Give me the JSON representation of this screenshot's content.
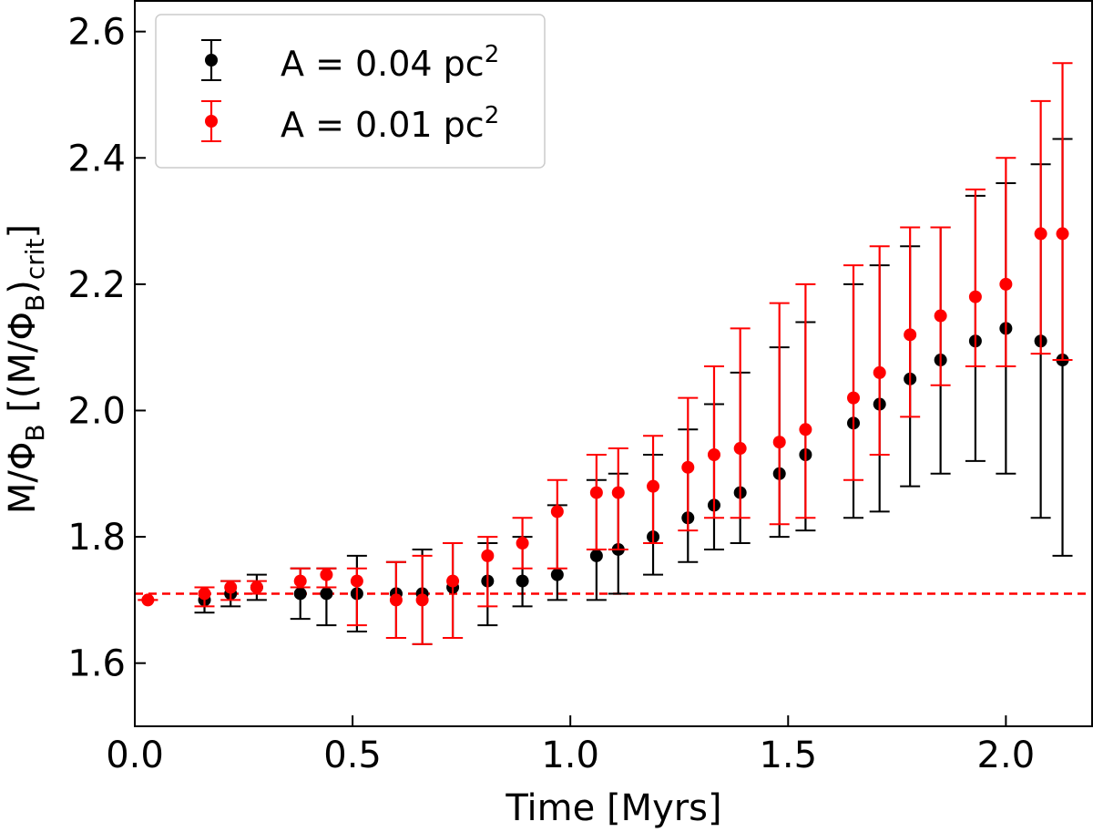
{
  "chart_data": {
    "type": "scatter",
    "xlabel": "Time [Myrs]",
    "ylabel": {
      "main": "M/Φ",
      "sub1": "B",
      "mid": " [(M/Φ",
      "sub2": "B",
      "close": ")",
      "sub3": "crit",
      "end": "]"
    },
    "xlim": [
      0.0,
      2.2
    ],
    "ylim": [
      1.5,
      2.65
    ],
    "xticks": [
      0.0,
      0.5,
      1.0,
      1.5,
      2.0
    ],
    "xtick_labels": [
      "0.0",
      "0.5",
      "1.0",
      "1.5",
      "2.0"
    ],
    "yticks": [
      1.6,
      1.8,
      2.0,
      2.2,
      2.4,
      2.6
    ],
    "ytick_labels": [
      "1.6",
      "1.8",
      "2.0",
      "2.2",
      "2.4",
      "2.6"
    ],
    "reference_line": {
      "y": 1.71,
      "color": "#ff0000",
      "style": "dashed"
    },
    "legend_position": "upper-left",
    "series": [
      {
        "name": "A = 0.04 pc2",
        "label": {
          "prefix": "A = 0.04 pc",
          "sup": "2"
        },
        "color": "#000000",
        "x": [
          0.16,
          0.22,
          0.28,
          0.38,
          0.44,
          0.51,
          0.6,
          0.66,
          0.73,
          0.81,
          0.89,
          0.97,
          1.06,
          1.11,
          1.19,
          1.27,
          1.33,
          1.39,
          1.48,
          1.54,
          1.65,
          1.71,
          1.78,
          1.85,
          1.93,
          2.0,
          2.08,
          2.13
        ],
        "y": [
          1.7,
          1.71,
          1.72,
          1.71,
          1.71,
          1.71,
          1.71,
          1.71,
          1.72,
          1.73,
          1.73,
          1.74,
          1.77,
          1.78,
          1.8,
          1.83,
          1.85,
          1.87,
          1.9,
          1.93,
          1.98,
          2.01,
          2.05,
          2.08,
          2.11,
          2.13,
          2.11,
          2.08
        ],
        "ylow": [
          1.68,
          1.69,
          1.7,
          1.67,
          1.66,
          1.65,
          1.64,
          1.63,
          1.64,
          1.66,
          1.69,
          1.7,
          1.7,
          1.71,
          1.74,
          1.76,
          1.78,
          1.79,
          1.8,
          1.81,
          1.83,
          1.84,
          1.88,
          1.9,
          1.92,
          1.9,
          1.83,
          1.77
        ],
        "yhigh": [
          1.72,
          1.73,
          1.74,
          1.75,
          1.75,
          1.77,
          1.76,
          1.78,
          1.79,
          1.79,
          1.8,
          1.85,
          1.89,
          1.9,
          1.93,
          1.97,
          2.01,
          2.06,
          2.1,
          2.14,
          2.2,
          2.23,
          2.26,
          2.29,
          2.34,
          2.36,
          2.39,
          2.43
        ]
      },
      {
        "name": "A = 0.01 pc2",
        "label": {
          "prefix": "A = 0.01 pc",
          "sup": "2"
        },
        "color": "#ff0000",
        "x": [
          0.03,
          0.16,
          0.22,
          0.28,
          0.38,
          0.44,
          0.51,
          0.6,
          0.66,
          0.73,
          0.81,
          0.89,
          0.97,
          1.06,
          1.11,
          1.19,
          1.27,
          1.33,
          1.39,
          1.48,
          1.54,
          1.65,
          1.71,
          1.78,
          1.85,
          1.93,
          2.0,
          2.08,
          2.13
        ],
        "y": [
          1.7,
          1.71,
          1.72,
          1.72,
          1.73,
          1.74,
          1.73,
          1.7,
          1.7,
          1.73,
          1.77,
          1.79,
          1.84,
          1.87,
          1.87,
          1.88,
          1.91,
          1.93,
          1.94,
          1.95,
          1.97,
          2.02,
          2.06,
          2.12,
          2.15,
          2.18,
          2.2,
          2.28,
          2.28
        ],
        "ylow": [
          1.7,
          1.69,
          1.7,
          1.71,
          1.72,
          1.72,
          1.66,
          1.64,
          1.63,
          1.64,
          1.69,
          1.75,
          1.75,
          1.78,
          1.78,
          1.79,
          1.81,
          1.83,
          1.83,
          1.82,
          1.83,
          1.89,
          1.93,
          1.99,
          2.04,
          2.07,
          2.07,
          2.09,
          2.08
        ],
        "yhigh": [
          1.7,
          1.72,
          1.73,
          1.73,
          1.75,
          1.75,
          1.75,
          1.76,
          1.77,
          1.79,
          1.8,
          1.83,
          1.89,
          1.93,
          1.94,
          1.96,
          2.02,
          2.07,
          2.13,
          2.17,
          2.2,
          2.23,
          2.26,
          2.29,
          2.29,
          2.35,
          2.4,
          2.49,
          2.55
        ]
      }
    ]
  }
}
